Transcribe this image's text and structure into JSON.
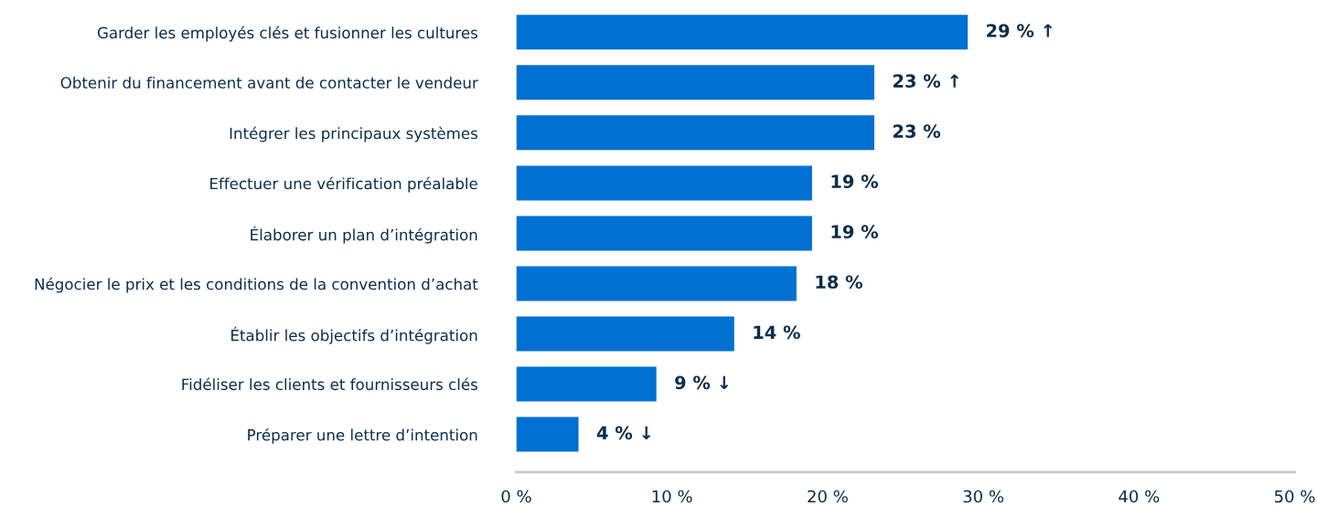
{
  "chart_data": {
    "type": "bar",
    "orientation": "horizontal",
    "categories": [
      "Garder les employés clés et fusionner les cultures",
      "Obtenir du financement avant de contacter le vendeur",
      "Intégrer les principaux systèmes",
      "Effectuer une vérification préalable",
      "Élaborer un plan d’intégration",
      "Négocier le prix et les conditions de la convention d’achat",
      "Établir les objectifs d’intégration",
      "Fidéliser les clients et fournisseurs clés",
      "Préparer une lettre d’intention"
    ],
    "values": [
      29,
      23,
      23,
      19,
      19,
      18,
      14,
      9,
      4
    ],
    "value_labels": [
      "29 % ↑",
      "23 % ↑",
      "23 %",
      "19 %",
      "19 %",
      "18 %",
      "14 %",
      "9 % ↓",
      "4 % ↓"
    ],
    "color": "#0070d2",
    "xlim": [
      0,
      50
    ],
    "xticks": [
      {
        "value": 0,
        "label": "0 %"
      },
      {
        "value": 10,
        "label": "10 %"
      },
      {
        "value": 20,
        "label": "20 %"
      },
      {
        "value": 30,
        "label": "30 %"
      },
      {
        "value": 40,
        "label": "40 %"
      },
      {
        "value": 50,
        "label": "50 %"
      }
    ],
    "grid": false,
    "legend": false
  }
}
